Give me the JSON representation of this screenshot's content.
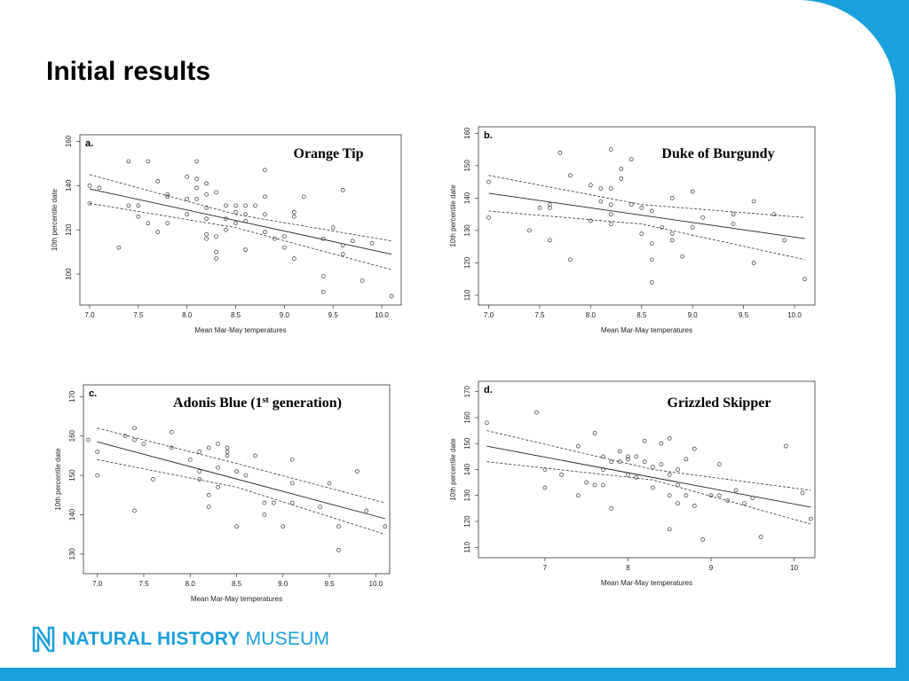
{
  "slide": {
    "title": "Initial results",
    "colors": {
      "accent": "#1aa0dc",
      "background": "#ffffff"
    }
  },
  "logo": {
    "bold": "NATURAL HISTORY",
    "regular": "MUSEUM",
    "icon": "nhm-n-logo-icon"
  },
  "chart_data": [
    {
      "type": "scatter",
      "panel": "a.",
      "title": "Orange Tip",
      "xlabel": "Mean Mar-May temperatures",
      "ylabel": "10th percentile date",
      "xlim": [
        6.9,
        10.2
      ],
      "ylim": [
        86,
        163
      ],
      "xticks": [
        7.0,
        7.5,
        8.0,
        8.5,
        9.0,
        9.5,
        10.0
      ],
      "yticks": [
        100,
        120,
        140,
        160
      ],
      "x_tick_labels": [
        "7.0",
        "7.5",
        "8.0",
        "8.5",
        "9.0",
        "9.5",
        "10.0"
      ],
      "y_tick_labels": [
        "100",
        "120",
        "140",
        "160"
      ],
      "regression_line": [
        [
          7.0,
          138.5
        ],
        [
          10.1,
          109
        ]
      ],
      "ci_upper": [
        [
          7.0,
          145
        ],
        [
          8.5,
          127
        ],
        [
          10.1,
          115
        ]
      ],
      "ci_lower": [
        [
          7.0,
          132
        ],
        [
          8.5,
          121
        ],
        [
          10.1,
          102
        ]
      ],
      "points": [
        [
          7.0,
          140
        ],
        [
          7.0,
          132
        ],
        [
          7.1,
          139
        ],
        [
          7.3,
          112
        ],
        [
          7.4,
          151
        ],
        [
          7.4,
          131
        ],
        [
          7.5,
          126
        ],
        [
          7.5,
          131
        ],
        [
          7.6,
          151
        ],
        [
          7.6,
          123
        ],
        [
          7.7,
          119
        ],
        [
          7.7,
          142
        ],
        [
          7.8,
          135
        ],
        [
          7.8,
          123
        ],
        [
          7.8,
          136
        ],
        [
          8.0,
          144
        ],
        [
          8.0,
          134
        ],
        [
          8.0,
          127
        ],
        [
          8.1,
          151
        ],
        [
          8.1,
          143
        ],
        [
          8.1,
          139
        ],
        [
          8.1,
          134
        ],
        [
          8.2,
          141
        ],
        [
          8.2,
          136
        ],
        [
          8.2,
          130
        ],
        [
          8.2,
          125
        ],
        [
          8.2,
          118
        ],
        [
          8.2,
          116
        ],
        [
          8.3,
          137
        ],
        [
          8.3,
          117
        ],
        [
          8.3,
          110
        ],
        [
          8.3,
          107
        ],
        [
          8.4,
          131
        ],
        [
          8.4,
          125
        ],
        [
          8.4,
          120
        ],
        [
          8.5,
          131
        ],
        [
          8.5,
          128
        ],
        [
          8.5,
          123
        ],
        [
          8.6,
          131
        ],
        [
          8.6,
          127
        ],
        [
          8.6,
          124
        ],
        [
          8.6,
          111
        ],
        [
          8.7,
          131
        ],
        [
          8.8,
          147
        ],
        [
          8.8,
          135
        ],
        [
          8.8,
          127
        ],
        [
          8.8,
          119
        ],
        [
          8.9,
          116
        ],
        [
          9.0,
          117
        ],
        [
          9.0,
          112
        ],
        [
          9.1,
          128
        ],
        [
          9.1,
          126
        ],
        [
          9.1,
          107
        ],
        [
          9.2,
          135
        ],
        [
          9.4,
          116
        ],
        [
          9.4,
          99
        ],
        [
          9.4,
          92
        ],
        [
          9.5,
          121
        ],
        [
          9.6,
          138
        ],
        [
          9.6,
          113
        ],
        [
          9.6,
          109
        ],
        [
          9.7,
          115
        ],
        [
          9.8,
          97
        ],
        [
          9.9,
          114
        ],
        [
          10.1,
          90
        ]
      ]
    },
    {
      "type": "scatter",
      "panel": "b.",
      "title": "Duke of Burgundy",
      "xlabel": "Mean Mar-May temperatures",
      "ylabel": "10th percentile date",
      "xlim": [
        6.9,
        10.2
      ],
      "ylim": [
        107,
        162
      ],
      "xticks": [
        7.0,
        7.5,
        8.0,
        8.5,
        9.0,
        9.5,
        10.0
      ],
      "yticks": [
        110,
        120,
        130,
        140,
        150,
        160
      ],
      "x_tick_labels": [
        "7.0",
        "7.5",
        "8.0",
        "8.5",
        "9.0",
        "9.5",
        "10.0"
      ],
      "y_tick_labels": [
        "110",
        "120",
        "130",
        "140",
        "150",
        "160"
      ],
      "regression_line": [
        [
          7.0,
          141.5
        ],
        [
          10.1,
          127.5
        ]
      ],
      "ci_upper": [
        [
          7.0,
          147
        ],
        [
          8.5,
          138
        ],
        [
          10.1,
          134
        ]
      ],
      "ci_lower": [
        [
          7.0,
          136
        ],
        [
          8.5,
          132
        ],
        [
          10.1,
          121
        ]
      ],
      "points": [
        [
          7.0,
          145
        ],
        [
          7.0,
          134
        ],
        [
          7.4,
          130
        ],
        [
          7.5,
          137
        ],
        [
          7.6,
          138
        ],
        [
          7.6,
          137
        ],
        [
          7.6,
          127
        ],
        [
          7.7,
          154
        ],
        [
          7.8,
          147
        ],
        [
          7.8,
          121
        ],
        [
          8.0,
          144
        ],
        [
          8.0,
          133
        ],
        [
          8.1,
          143
        ],
        [
          8.1,
          139
        ],
        [
          8.2,
          155
        ],
        [
          8.2,
          143
        ],
        [
          8.2,
          138
        ],
        [
          8.2,
          135
        ],
        [
          8.2,
          132
        ],
        [
          8.3,
          149
        ],
        [
          8.3,
          146
        ],
        [
          8.4,
          152
        ],
        [
          8.4,
          138
        ],
        [
          8.5,
          137
        ],
        [
          8.5,
          129
        ],
        [
          8.6,
          136
        ],
        [
          8.6,
          126
        ],
        [
          8.6,
          121
        ],
        [
          8.6,
          114
        ],
        [
          8.7,
          131
        ],
        [
          8.8,
          140
        ],
        [
          8.8,
          129
        ],
        [
          8.8,
          127
        ],
        [
          8.9,
          122
        ],
        [
          9.0,
          142
        ],
        [
          9.0,
          131
        ],
        [
          9.1,
          134
        ],
        [
          9.4,
          135
        ],
        [
          9.4,
          132
        ],
        [
          9.6,
          139
        ],
        [
          9.6,
          120
        ],
        [
          9.8,
          135
        ],
        [
          9.9,
          127
        ],
        [
          10.1,
          115
        ]
      ]
    },
    {
      "type": "scatter",
      "panel": "c.",
      "title": "Adonis Blue (1st generation)",
      "xlabel": "Mean Mar-May temperatures",
      "ylabel": "10th percentile date",
      "xlim": [
        6.85,
        10.15
      ],
      "ylim": [
        125,
        173
      ],
      "xticks": [
        7.0,
        7.5,
        8.0,
        8.5,
        9.0,
        9.5,
        10.0
      ],
      "yticks": [
        130,
        140,
        150,
        160,
        170
      ],
      "x_tick_labels": [
        "7.0",
        "7.5",
        "8.0",
        "8.5",
        "9.0",
        "9.5",
        "10.0"
      ],
      "y_tick_labels": [
        "130",
        "140",
        "150",
        "160",
        "170"
      ],
      "regression_line": [
        [
          7.0,
          158.5
        ],
        [
          10.1,
          139
        ]
      ],
      "ci_upper": [
        [
          7.0,
          162
        ],
        [
          8.5,
          153
        ],
        [
          10.1,
          143
        ]
      ],
      "ci_lower": [
        [
          7.0,
          154
        ],
        [
          8.5,
          147
        ],
        [
          10.1,
          135
        ]
      ],
      "points": [
        [
          6.9,
          159
        ],
        [
          7.0,
          156
        ],
        [
          7.0,
          150
        ],
        [
          7.3,
          160
        ],
        [
          7.4,
          162
        ],
        [
          7.4,
          159
        ],
        [
          7.4,
          141
        ],
        [
          7.5,
          158
        ],
        [
          7.6,
          149
        ],
        [
          7.8,
          161
        ],
        [
          7.8,
          157
        ],
        [
          8.0,
          154
        ],
        [
          8.1,
          156
        ],
        [
          8.1,
          151
        ],
        [
          8.1,
          149
        ],
        [
          8.2,
          145
        ],
        [
          8.2,
          142
        ],
        [
          8.2,
          157
        ],
        [
          8.3,
          158
        ],
        [
          8.3,
          152
        ],
        [
          8.3,
          147
        ],
        [
          8.4,
          157
        ],
        [
          8.4,
          156
        ],
        [
          8.4,
          155
        ],
        [
          8.5,
          151
        ],
        [
          8.5,
          137
        ],
        [
          8.6,
          150
        ],
        [
          8.7,
          155
        ],
        [
          8.8,
          143
        ],
        [
          8.8,
          140
        ],
        [
          8.9,
          143
        ],
        [
          9.0,
          137
        ],
        [
          9.1,
          154
        ],
        [
          9.1,
          148
        ],
        [
          9.1,
          143
        ],
        [
          9.4,
          142
        ],
        [
          9.5,
          148
        ],
        [
          9.6,
          137
        ],
        [
          9.6,
          131
        ],
        [
          9.8,
          151
        ],
        [
          9.9,
          141
        ],
        [
          10.1,
          137
        ]
      ]
    },
    {
      "type": "scatter",
      "panel": "d.",
      "title": "Grizzled Skipper",
      "xlabel": "Mean Mar-May temperatures",
      "ylabel": "10th percentile date",
      "xlim": [
        6.2,
        10.25
      ],
      "ylim": [
        106,
        174
      ],
      "xticks": [
        7,
        8,
        9,
        10
      ],
      "yticks": [
        110,
        120,
        130,
        140,
        150,
        160,
        170
      ],
      "x_tick_labels": [
        "7",
        "8",
        "9",
        "10"
      ],
      "y_tick_labels": [
        "110",
        "120",
        "130",
        "140",
        "150",
        "160",
        "170"
      ],
      "regression_line": [
        [
          6.3,
          149
        ],
        [
          10.2,
          125.5
        ]
      ],
      "ci_upper": [
        [
          6.3,
          155
        ],
        [
          8.3,
          140
        ],
        [
          10.2,
          132
        ]
      ],
      "ci_lower": [
        [
          6.3,
          143
        ],
        [
          8.3,
          136
        ],
        [
          10.2,
          119
        ]
      ],
      "points": [
        [
          6.3,
          158
        ],
        [
          6.9,
          162
        ],
        [
          7.0,
          140
        ],
        [
          7.0,
          133
        ],
        [
          7.2,
          138
        ],
        [
          7.4,
          149
        ],
        [
          7.4,
          130
        ],
        [
          7.5,
          135
        ],
        [
          7.6,
          154
        ],
        [
          7.6,
          134
        ],
        [
          7.7,
          145
        ],
        [
          7.7,
          140
        ],
        [
          7.7,
          134
        ],
        [
          7.8,
          143
        ],
        [
          7.8,
          125
        ],
        [
          7.9,
          147
        ],
        [
          7.9,
          143
        ],
        [
          8.0,
          145
        ],
        [
          8.0,
          144
        ],
        [
          8.0,
          138
        ],
        [
          8.1,
          137
        ],
        [
          8.1,
          145
        ],
        [
          8.2,
          151
        ],
        [
          8.2,
          143
        ],
        [
          8.3,
          141
        ],
        [
          8.3,
          133
        ],
        [
          8.4,
          150
        ],
        [
          8.4,
          142
        ],
        [
          8.5,
          152
        ],
        [
          8.5,
          138
        ],
        [
          8.5,
          130
        ],
        [
          8.5,
          117
        ],
        [
          8.6,
          140
        ],
        [
          8.6,
          134
        ],
        [
          8.6,
          127
        ],
        [
          8.7,
          144
        ],
        [
          8.7,
          130
        ],
        [
          8.8,
          148
        ],
        [
          8.8,
          126
        ],
        [
          8.9,
          113
        ],
        [
          9.0,
          130
        ],
        [
          9.1,
          142
        ],
        [
          9.1,
          130
        ],
        [
          9.2,
          128
        ],
        [
          9.3,
          132
        ],
        [
          9.4,
          127
        ],
        [
          9.5,
          129
        ],
        [
          9.6,
          114
        ],
        [
          9.9,
          149
        ],
        [
          10.1,
          131
        ],
        [
          10.2,
          121
        ]
      ]
    }
  ]
}
